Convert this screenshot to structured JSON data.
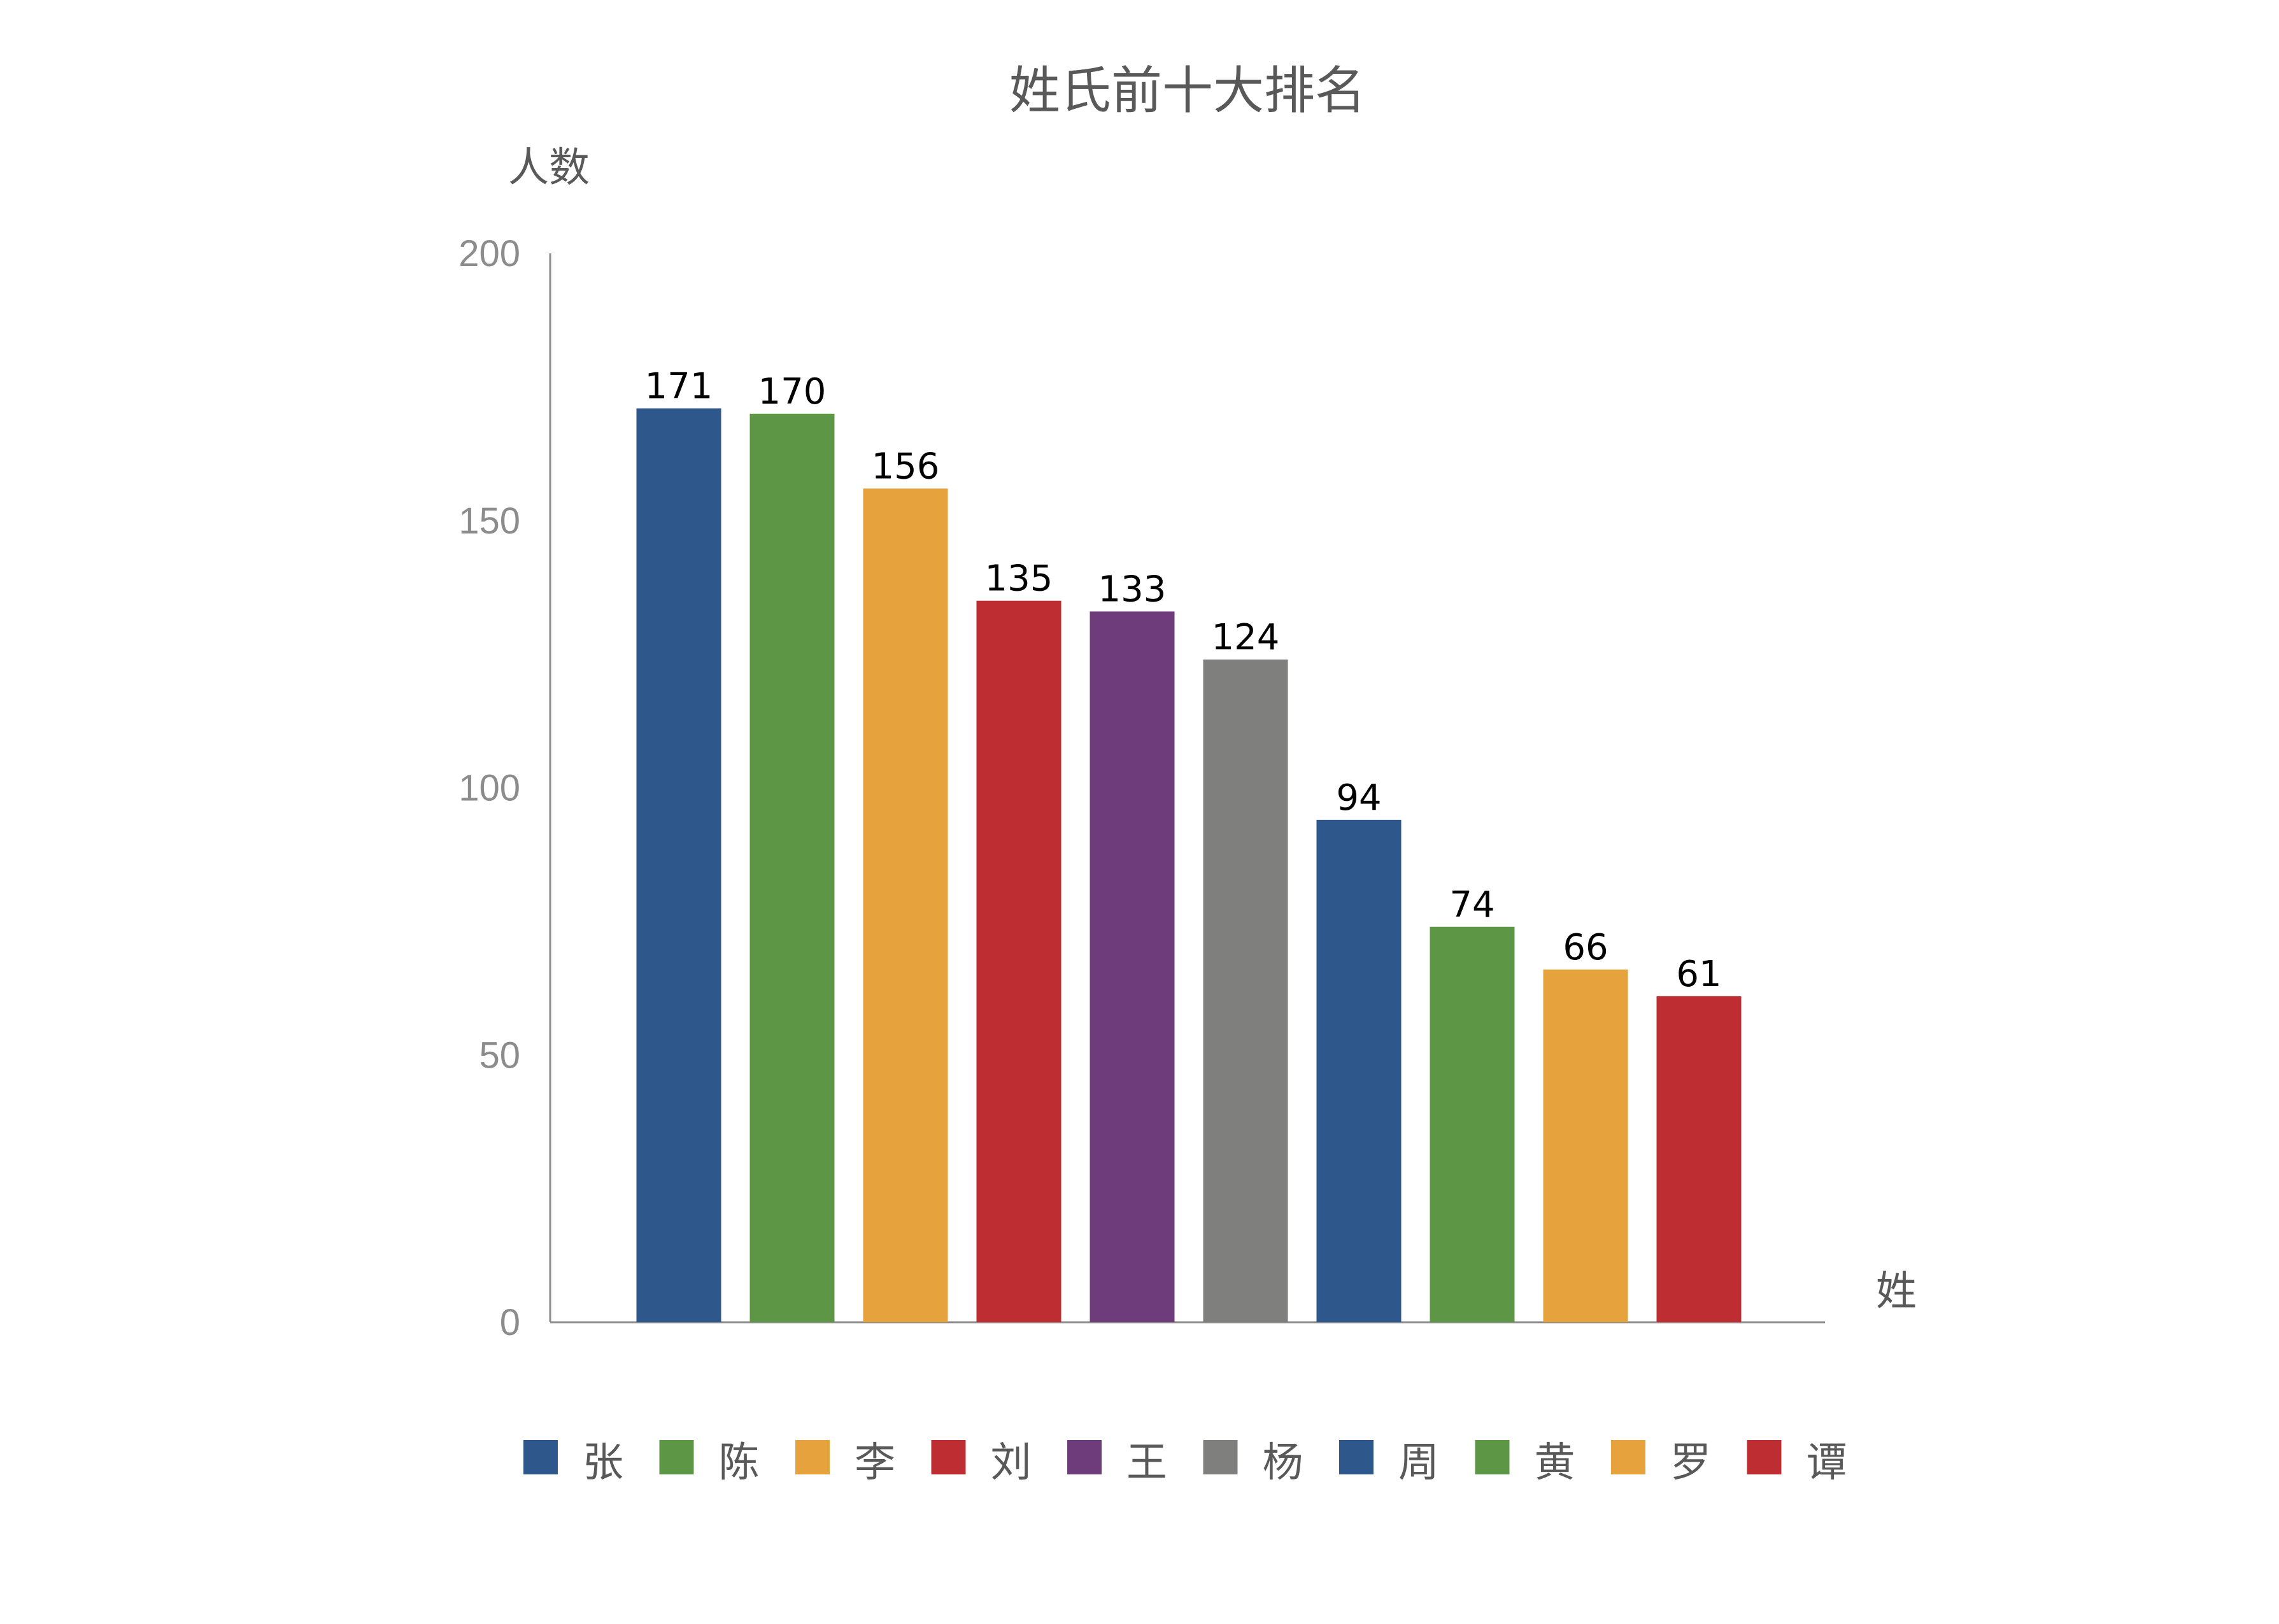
{
  "chart_data": {
    "type": "bar",
    "title": "姓氏前十大排名",
    "ylabel": "人数",
    "xlabel": "姓",
    "categories": [
      "张",
      "陈",
      "李",
      "刘",
      "王",
      "杨",
      "周",
      "黄",
      "罗",
      "谭"
    ],
    "values": [
      171,
      170,
      156,
      135,
      133,
      124,
      94,
      74,
      66,
      61
    ],
    "colors": [
      "#2e578b",
      "#5d9645",
      "#e6a23c",
      "#bd2d31",
      "#6e3c7a",
      "#7f807e",
      "#2e578b",
      "#5d9645",
      "#e6a23c",
      "#bd2d31"
    ],
    "ylim": [
      0,
      200
    ],
    "yticks": [
      0,
      50,
      100,
      150,
      200
    ],
    "grid": false,
    "legend": "bottom"
  }
}
